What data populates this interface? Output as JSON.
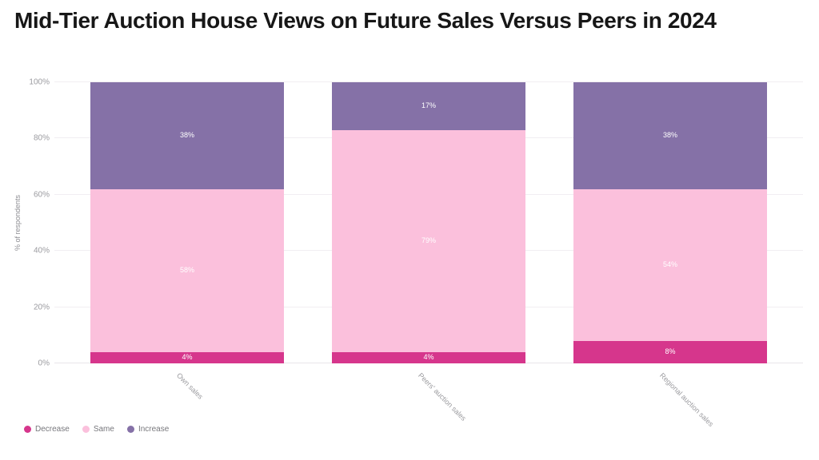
{
  "title": "Mid-Tier Auction House Views on Future Sales Versus Peers in 2024",
  "chart_data": {
    "type": "bar",
    "stacked": true,
    "title": "Mid-Tier Auction House Views on Future Sales Versus Peers in 2024",
    "xlabel": "",
    "ylabel": "% of respondents",
    "ylim": [
      0,
      100
    ],
    "yticks": [
      {
        "value": 0,
        "label": "0%"
      },
      {
        "value": 20,
        "label": "20%"
      },
      {
        "value": 40,
        "label": "40%"
      },
      {
        "value": 60,
        "label": "60%"
      },
      {
        "value": 80,
        "label": "80%"
      },
      {
        "value": 100,
        "label": "100%"
      }
    ],
    "grid": true,
    "legend_position": "bottom-left",
    "categories": [
      "Own sales",
      "Peers' auction sales",
      "Regional auction sales"
    ],
    "series": [
      {
        "name": "Decrease",
        "color": "#d6368c",
        "values": [
          4,
          4,
          8
        ],
        "labels": [
          "4%",
          "4%",
          "8%"
        ]
      },
      {
        "name": "Same",
        "color": "#fbc0dc",
        "values": [
          58,
          79,
          54
        ],
        "labels": [
          "58%",
          "79%",
          "54%"
        ]
      },
      {
        "name": "Increase",
        "color": "#8571a7",
        "values": [
          38,
          17,
          38
        ],
        "labels": [
          "38%",
          "17%",
          "38%"
        ]
      }
    ]
  },
  "colors": {
    "decrease": "#d6368c",
    "same": "#fbc0dc",
    "increase": "#8571a7",
    "gridline": "#f1eef2",
    "axis_text": "#9a9a9f",
    "title_text": "#171717"
  }
}
